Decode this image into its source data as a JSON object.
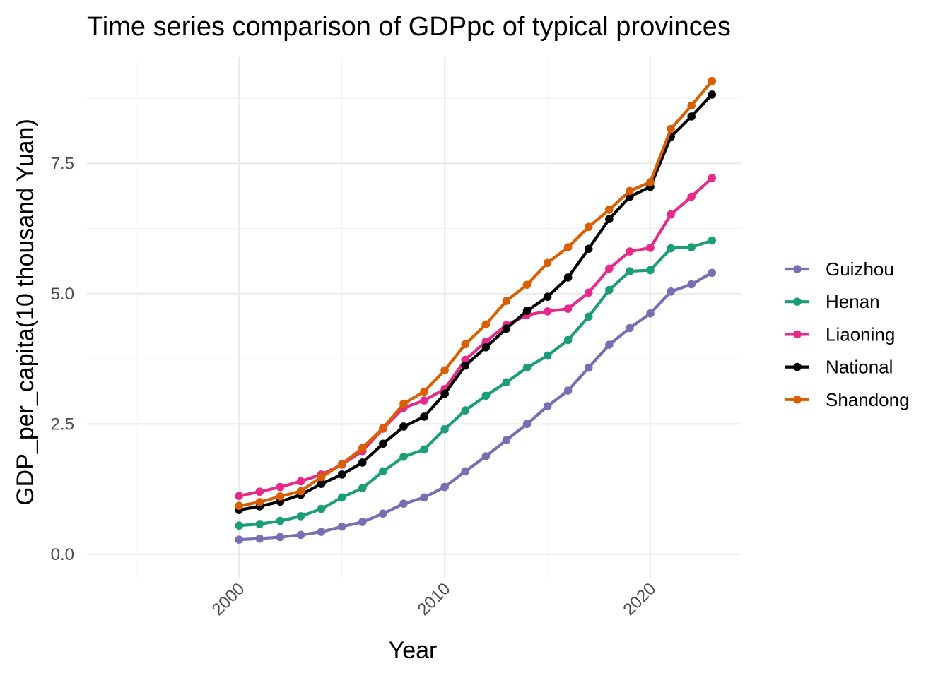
{
  "chart_data": {
    "type": "line",
    "title": "Time series comparison of GDPpc of typical provinces",
    "xlabel": "Year",
    "ylabel": "GDP_per_capita(10 thousand Yuan)",
    "xlim": [
      1992.6,
      2024.4
    ],
    "ylim": [
      -0.45,
      9.55
    ],
    "x_ticks": [
      2000,
      2010,
      2020
    ],
    "x_tick_labels": [
      "2000",
      "2010",
      "2020"
    ],
    "y_ticks": [
      0,
      2.5,
      5,
      7.5
    ],
    "y_tick_labels": [
      "0.0",
      "2.5",
      "5.0",
      "7.5"
    ],
    "grid": true,
    "legend_position": "right",
    "x": [
      2000,
      2001,
      2002,
      2003,
      2004,
      2005,
      2006,
      2007,
      2008,
      2009,
      2010,
      2011,
      2012,
      2013,
      2014,
      2015,
      2016,
      2017,
      2018,
      2019,
      2020,
      2021,
      2022,
      2023
    ],
    "series": [
      {
        "name": "Guizhou",
        "color": "#7570b3",
        "values": [
          0.28,
          0.3,
          0.33,
          0.37,
          0.43,
          0.53,
          0.62,
          0.78,
          0.97,
          1.09,
          1.29,
          1.59,
          1.88,
          2.19,
          2.5,
          2.84,
          3.14,
          3.58,
          4.02,
          4.34,
          4.62,
          5.04,
          5.18,
          5.4
        ]
      },
      {
        "name": "Henan",
        "color": "#1b9e77",
        "values": [
          0.55,
          0.58,
          0.64,
          0.73,
          0.87,
          1.09,
          1.27,
          1.59,
          1.87,
          2.01,
          2.4,
          2.76,
          3.04,
          3.3,
          3.58,
          3.81,
          4.11,
          4.56,
          5.07,
          5.43,
          5.45,
          5.87,
          5.89,
          6.02
        ]
      },
      {
        "name": "Liaoning",
        "color": "#e7298a",
        "values": [
          1.12,
          1.2,
          1.29,
          1.4,
          1.53,
          1.72,
          1.98,
          2.41,
          2.81,
          2.95,
          3.17,
          3.73,
          4.08,
          4.4,
          4.59,
          4.66,
          4.71,
          5.02,
          5.48,
          5.81,
          5.88,
          6.52,
          6.86,
          7.22
        ]
      },
      {
        "name": "National",
        "color": "#000000",
        "values": [
          0.85,
          0.92,
          1.01,
          1.14,
          1.35,
          1.53,
          1.76,
          2.12,
          2.45,
          2.64,
          3.08,
          3.62,
          3.97,
          4.33,
          4.67,
          4.94,
          5.31,
          5.86,
          6.43,
          6.86,
          7.05,
          8.01,
          8.4,
          8.82
        ]
      },
      {
        "name": "Shandong",
        "color": "#d95f02",
        "values": [
          0.93,
          1.0,
          1.11,
          1.21,
          1.48,
          1.73,
          2.04,
          2.42,
          2.89,
          3.12,
          3.53,
          4.03,
          4.41,
          4.86,
          5.17,
          5.59,
          5.89,
          6.28,
          6.61,
          6.97,
          7.14,
          8.16,
          8.61,
          9.08
        ]
      }
    ]
  }
}
